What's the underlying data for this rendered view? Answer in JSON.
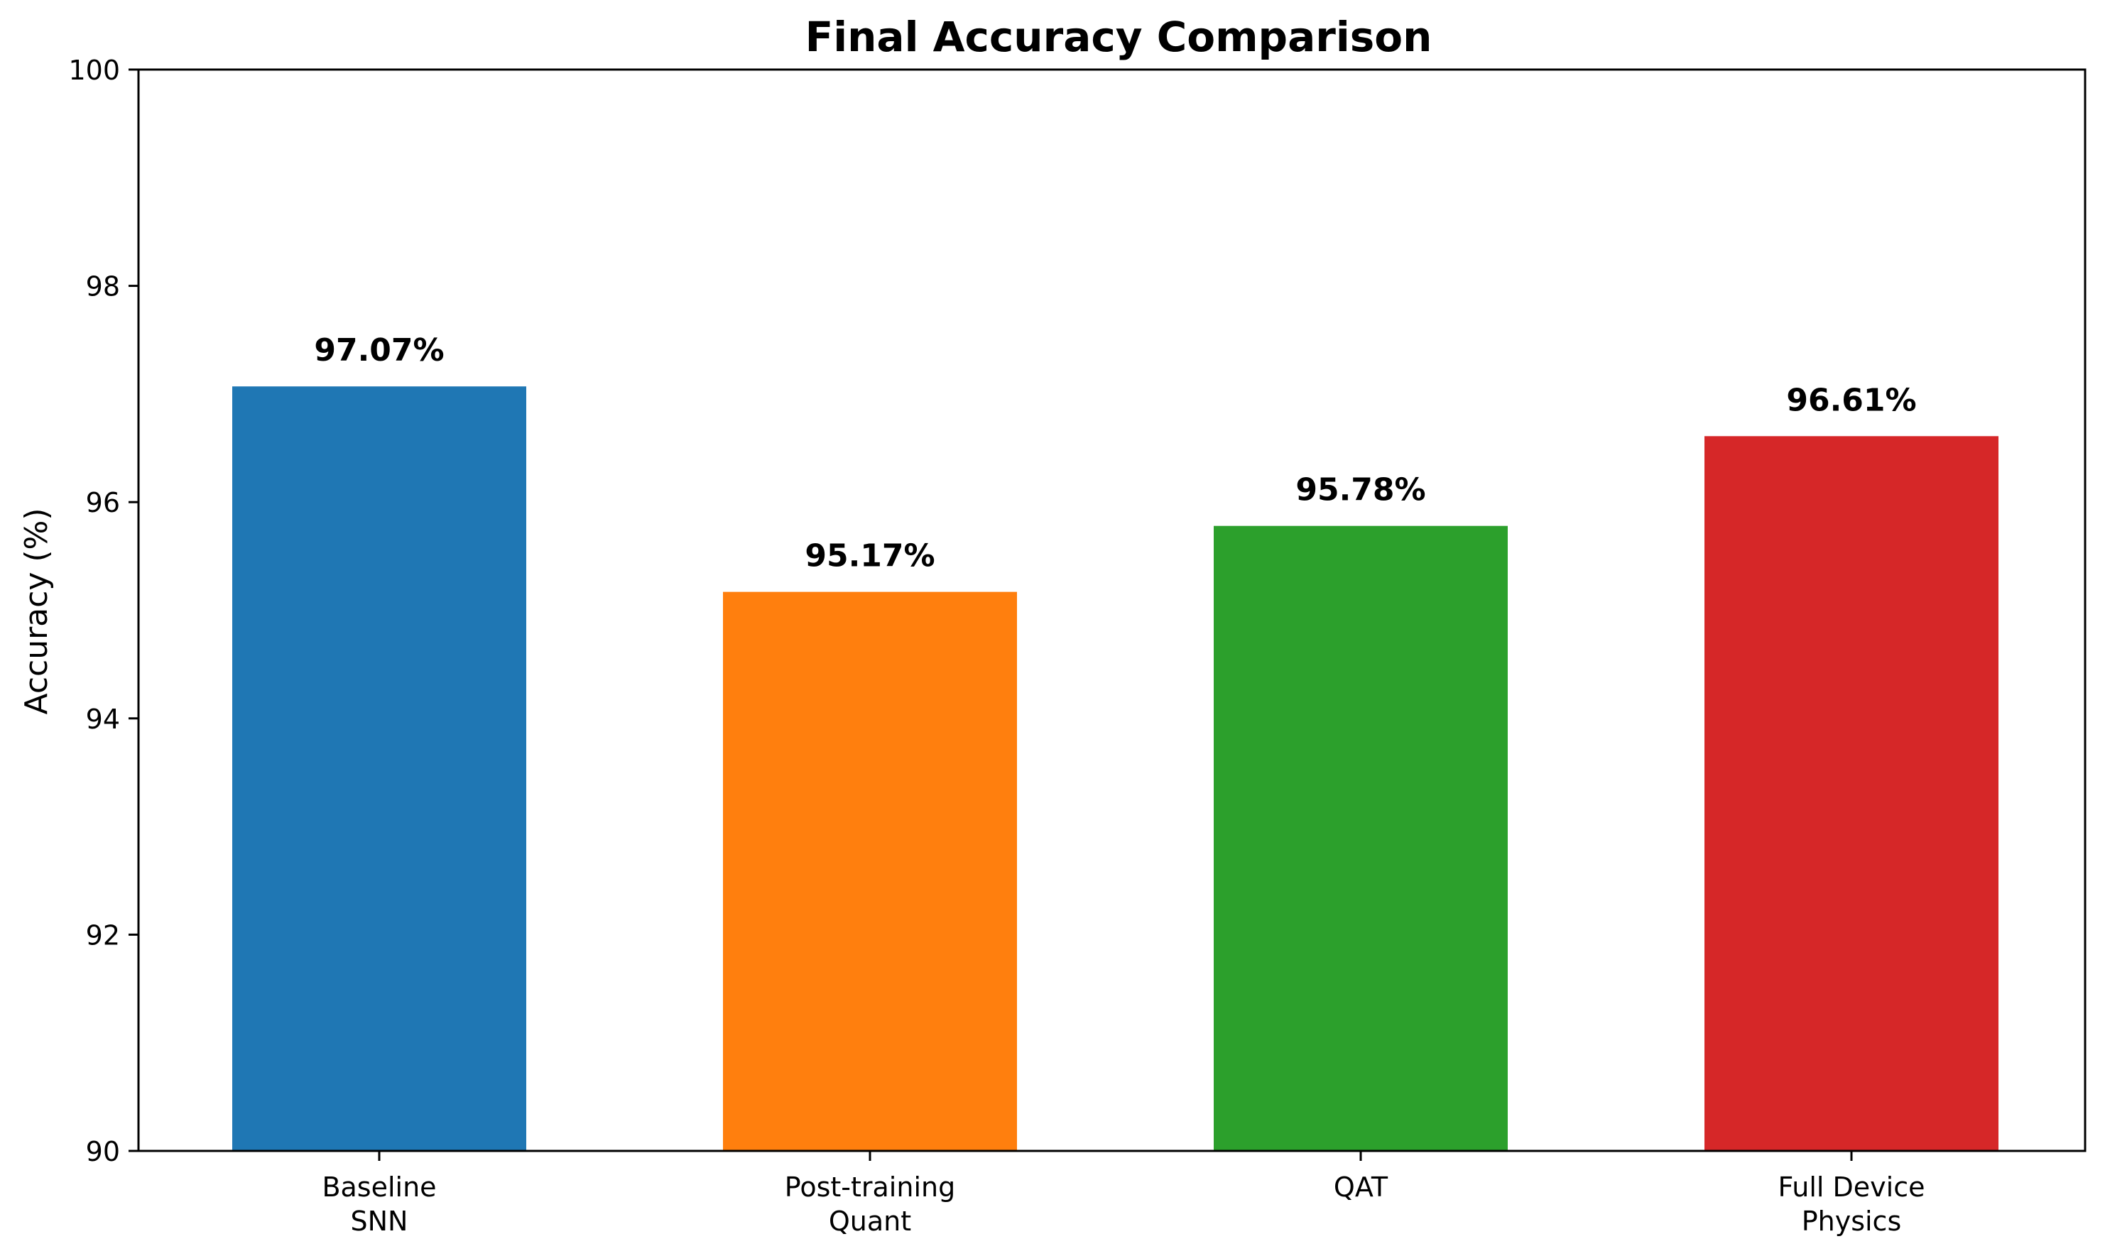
{
  "chart_data": {
    "type": "bar",
    "title": "Final Accuracy Comparison",
    "xlabel": "",
    "ylabel": "Accuracy (%)",
    "ylim": [
      90,
      100
    ],
    "yticks": [
      90,
      92,
      94,
      96,
      98,
      100
    ],
    "grid": false,
    "categories": [
      [
        "Baseline",
        "SNN"
      ],
      [
        "Post-training",
        "Quant"
      ],
      [
        "QAT"
      ],
      [
        "Full Device",
        "Physics"
      ]
    ],
    "values": [
      97.07,
      95.17,
      95.78,
      96.61
    ],
    "data_labels": [
      "97.07%",
      "95.17%",
      "95.78%",
      "96.61%"
    ],
    "colors": [
      "#1f77b4",
      "#ff7f0e",
      "#2ca02c",
      "#d62728"
    ]
  }
}
